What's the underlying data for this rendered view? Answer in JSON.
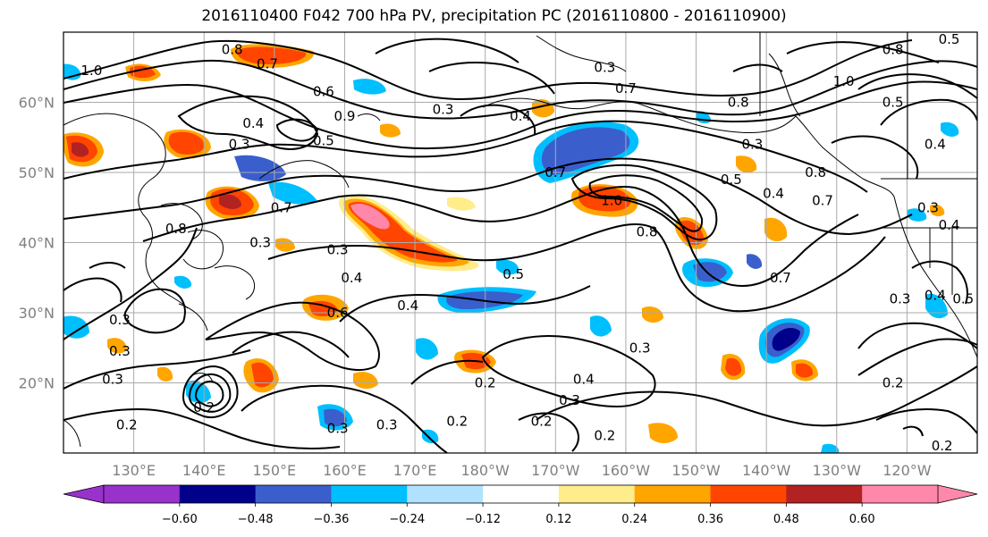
{
  "title": "2016110400 F042 700 hPa PV, precipitation PC (2016110800 - 2016110900)",
  "lat_labels": [
    "60°N",
    "50°N",
    "40°N",
    "30°N",
    "20°N"
  ],
  "lat_values": [
    60,
    50,
    40,
    30,
    20
  ],
  "lon_labels": [
    "130°E",
    "140°E",
    "150°E",
    "160°E",
    "170°E",
    "180°W",
    "170°W",
    "160°W",
    "150°W",
    "140°W",
    "130°W",
    "120°W"
  ],
  "map_extent": {
    "lon_min": 120,
    "lon_max": 250,
    "lat_min": 10,
    "lat_max": 70
  },
  "colorbar": {
    "ticks": [
      "−0.60",
      "−0.48",
      "−0.36",
      "−0.24",
      "−0.12",
      "0.12",
      "0.24",
      "0.36",
      "0.48",
      "0.60"
    ],
    "colors": [
      "#9932cc",
      "#00008b",
      "#3a5fcd",
      "#00bfff",
      "#b0e2ff",
      "#ffffff",
      "#ffec8b",
      "#ffa500",
      "#ff4500",
      "#b22222",
      "#ff88aa",
      "#ff88aa"
    ],
    "extend": "both"
  },
  "contour_labels": [
    {
      "text": "0.8",
      "lon": 144,
      "lat": 67.5
    },
    {
      "text": "0.7",
      "lon": 149,
      "lat": 65.5
    },
    {
      "text": "1.0",
      "lon": 124,
      "lat": 64.5
    },
    {
      "text": "0.6",
      "lon": 157,
      "lat": 61.5
    },
    {
      "text": "0.4",
      "lon": 147,
      "lat": 57
    },
    {
      "text": "0.3",
      "lon": 145,
      "lat": 54
    },
    {
      "text": "0.5",
      "lon": 157,
      "lat": 54.5
    },
    {
      "text": "0.9",
      "lon": 160,
      "lat": 58
    },
    {
      "text": "0.3",
      "lon": 174,
      "lat": 59
    },
    {
      "text": "0.4",
      "lon": 185,
      "lat": 58
    },
    {
      "text": "0.7",
      "lon": 200,
      "lat": 62
    },
    {
      "text": "0.3",
      "lon": 197,
      "lat": 65
    },
    {
      "text": "0.8",
      "lon": 216,
      "lat": 60
    },
    {
      "text": "0.3",
      "lon": 218,
      "lat": 54
    },
    {
      "text": "0.5",
      "lon": 215,
      "lat": 49
    },
    {
      "text": "0.4",
      "lon": 221,
      "lat": 47
    },
    {
      "text": "0.7",
      "lon": 228,
      "lat": 46
    },
    {
      "text": "0.8",
      "lon": 227,
      "lat": 50
    },
    {
      "text": "1.0",
      "lon": 231,
      "lat": 63
    },
    {
      "text": "0.5",
      "lon": 238,
      "lat": 60
    },
    {
      "text": "0.8",
      "lon": 238,
      "lat": 67.5
    },
    {
      "text": "0.5",
      "lon": 246,
      "lat": 69
    },
    {
      "text": "0.4",
      "lon": 244,
      "lat": 54
    },
    {
      "text": "0.3",
      "lon": 243,
      "lat": 45
    },
    {
      "text": "0.4",
      "lon": 246,
      "lat": 42.5
    },
    {
      "text": "0.7",
      "lon": 190,
      "lat": 50
    },
    {
      "text": "1.0",
      "lon": 198,
      "lat": 46
    },
    {
      "text": "0.8",
      "lon": 203,
      "lat": 41.5
    },
    {
      "text": "0.8",
      "lon": 136,
      "lat": 42
    },
    {
      "text": "0.7",
      "lon": 151,
      "lat": 45
    },
    {
      "text": "0.3",
      "lon": 148,
      "lat": 40
    },
    {
      "text": "0.3",
      "lon": 159,
      "lat": 39
    },
    {
      "text": "0.4",
      "lon": 161,
      "lat": 35
    },
    {
      "text": "0.5",
      "lon": 184,
      "lat": 35.5
    },
    {
      "text": "0.4",
      "lon": 169,
      "lat": 31
    },
    {
      "text": "0.6",
      "lon": 159,
      "lat": 30
    },
    {
      "text": "0.7",
      "lon": 222,
      "lat": 35
    },
    {
      "text": "0.3",
      "lon": 239,
      "lat": 32
    },
    {
      "text": "0.4",
      "lon": 244,
      "lat": 32.5
    },
    {
      "text": "0.5",
      "lon": 248,
      "lat": 32
    },
    {
      "text": "0.3",
      "lon": 128,
      "lat": 29
    },
    {
      "text": "0.3",
      "lon": 127,
      "lat": 20.5
    },
    {
      "text": "0.3",
      "lon": 128,
      "lat": 24.5
    },
    {
      "text": "0.3",
      "lon": 202,
      "lat": 25
    },
    {
      "text": "0.4",
      "lon": 194,
      "lat": 20.5
    },
    {
      "text": "0.3",
      "lon": 192,
      "lat": 17.5
    },
    {
      "text": "0.2",
      "lon": 180,
      "lat": 20
    },
    {
      "text": "0.2",
      "lon": 197,
      "lat": 12.5
    },
    {
      "text": "0.2",
      "lon": 188,
      "lat": 14.5
    },
    {
      "text": "0.3",
      "lon": 166,
      "lat": 14
    },
    {
      "text": "0.3",
      "lon": 159,
      "lat": 13.5
    },
    {
      "text": "0.2",
      "lon": 129,
      "lat": 14
    },
    {
      "text": "0.2",
      "lon": 176,
      "lat": 14.5
    },
    {
      "text": "0.2",
      "lon": 238,
      "lat": 20
    },
    {
      "text": "0.2",
      "lon": 245,
      "lat": 11
    },
    {
      "text": "0.2",
      "lon": 140,
      "lat": 16.5
    }
  ]
}
